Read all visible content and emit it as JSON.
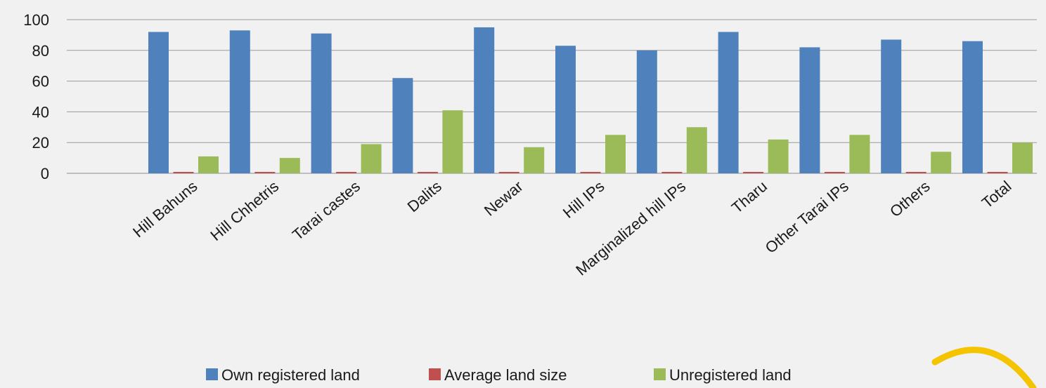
{
  "chart_data": {
    "type": "bar",
    "title": "",
    "xlabel": "",
    "ylabel": "",
    "ylim": [
      0,
      100
    ],
    "yticks": [
      0,
      20,
      40,
      60,
      80,
      100
    ],
    "grid": true,
    "legend_position": "bottom",
    "categories": [
      "Hill Bahuns",
      "Hill Chhetris",
      "Tarai castes",
      "Dalits",
      "Newar",
      "Hill IPs",
      "Marginalized hill IPs",
      "Tharu",
      "Other Tarai IPs",
      "Others",
      "Total"
    ],
    "series": [
      {
        "name": "Own registered  land",
        "color": "#4f81bd",
        "values": [
          92,
          93,
          91,
          62,
          95,
          83,
          80,
          92,
          82,
          87,
          86
        ]
      },
      {
        "name": "Average land size",
        "color": "#c0504d",
        "values": [
          0.8,
          0.8,
          0.8,
          0.8,
          0.8,
          0.8,
          0.8,
          0.8,
          0.8,
          0.8,
          0.8
        ]
      },
      {
        "name": "Unregistered land",
        "color": "#9bbb59",
        "values": [
          11,
          10,
          19,
          41,
          17,
          25,
          30,
          22,
          25,
          14,
          20
        ]
      }
    ]
  },
  "decoration": {
    "arc_color": "#f5c400",
    "arc_icon": "highlight-arc-icon"
  }
}
